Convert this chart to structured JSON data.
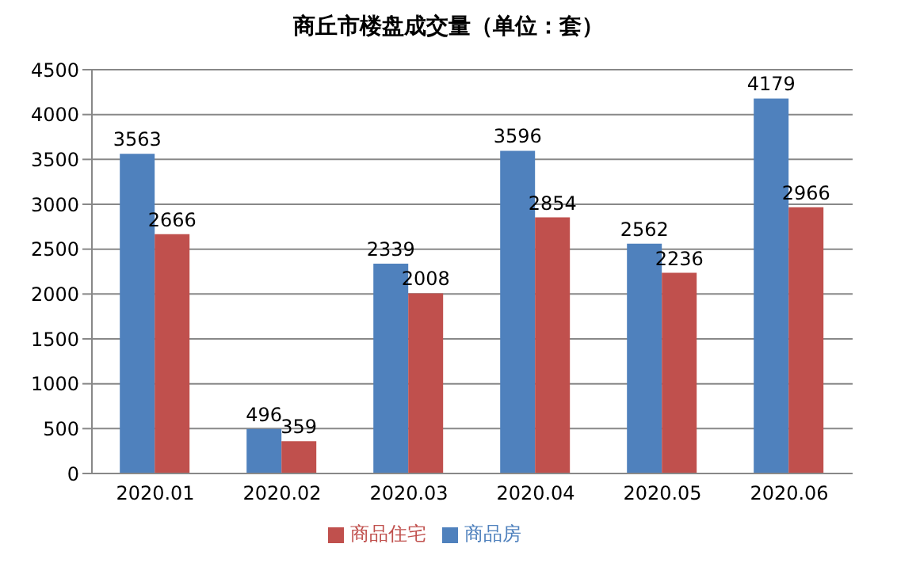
{
  "chart_data": {
    "type": "bar",
    "title": "商丘市楼盘成交量（单位：套）",
    "categories": [
      "2020.01",
      "2020.02",
      "2020.03",
      "2020.04",
      "2020.05",
      "2020.06"
    ],
    "series": [
      {
        "name": "商品房",
        "color": "#4f81bd",
        "values": [
          3563,
          496,
          2339,
          3596,
          2562,
          4179
        ]
      },
      {
        "name": "商品住宅",
        "color": "#c0504d",
        "values": [
          2666,
          359,
          2008,
          2854,
          2236,
          2966
        ]
      }
    ],
    "ylim": [
      0,
      4500
    ],
    "yticks": [
      0,
      500,
      1000,
      1500,
      2000,
      2500,
      3000,
      3500,
      4000,
      4500
    ],
    "grid": "y",
    "legend": "bottom",
    "data_labels": true
  }
}
